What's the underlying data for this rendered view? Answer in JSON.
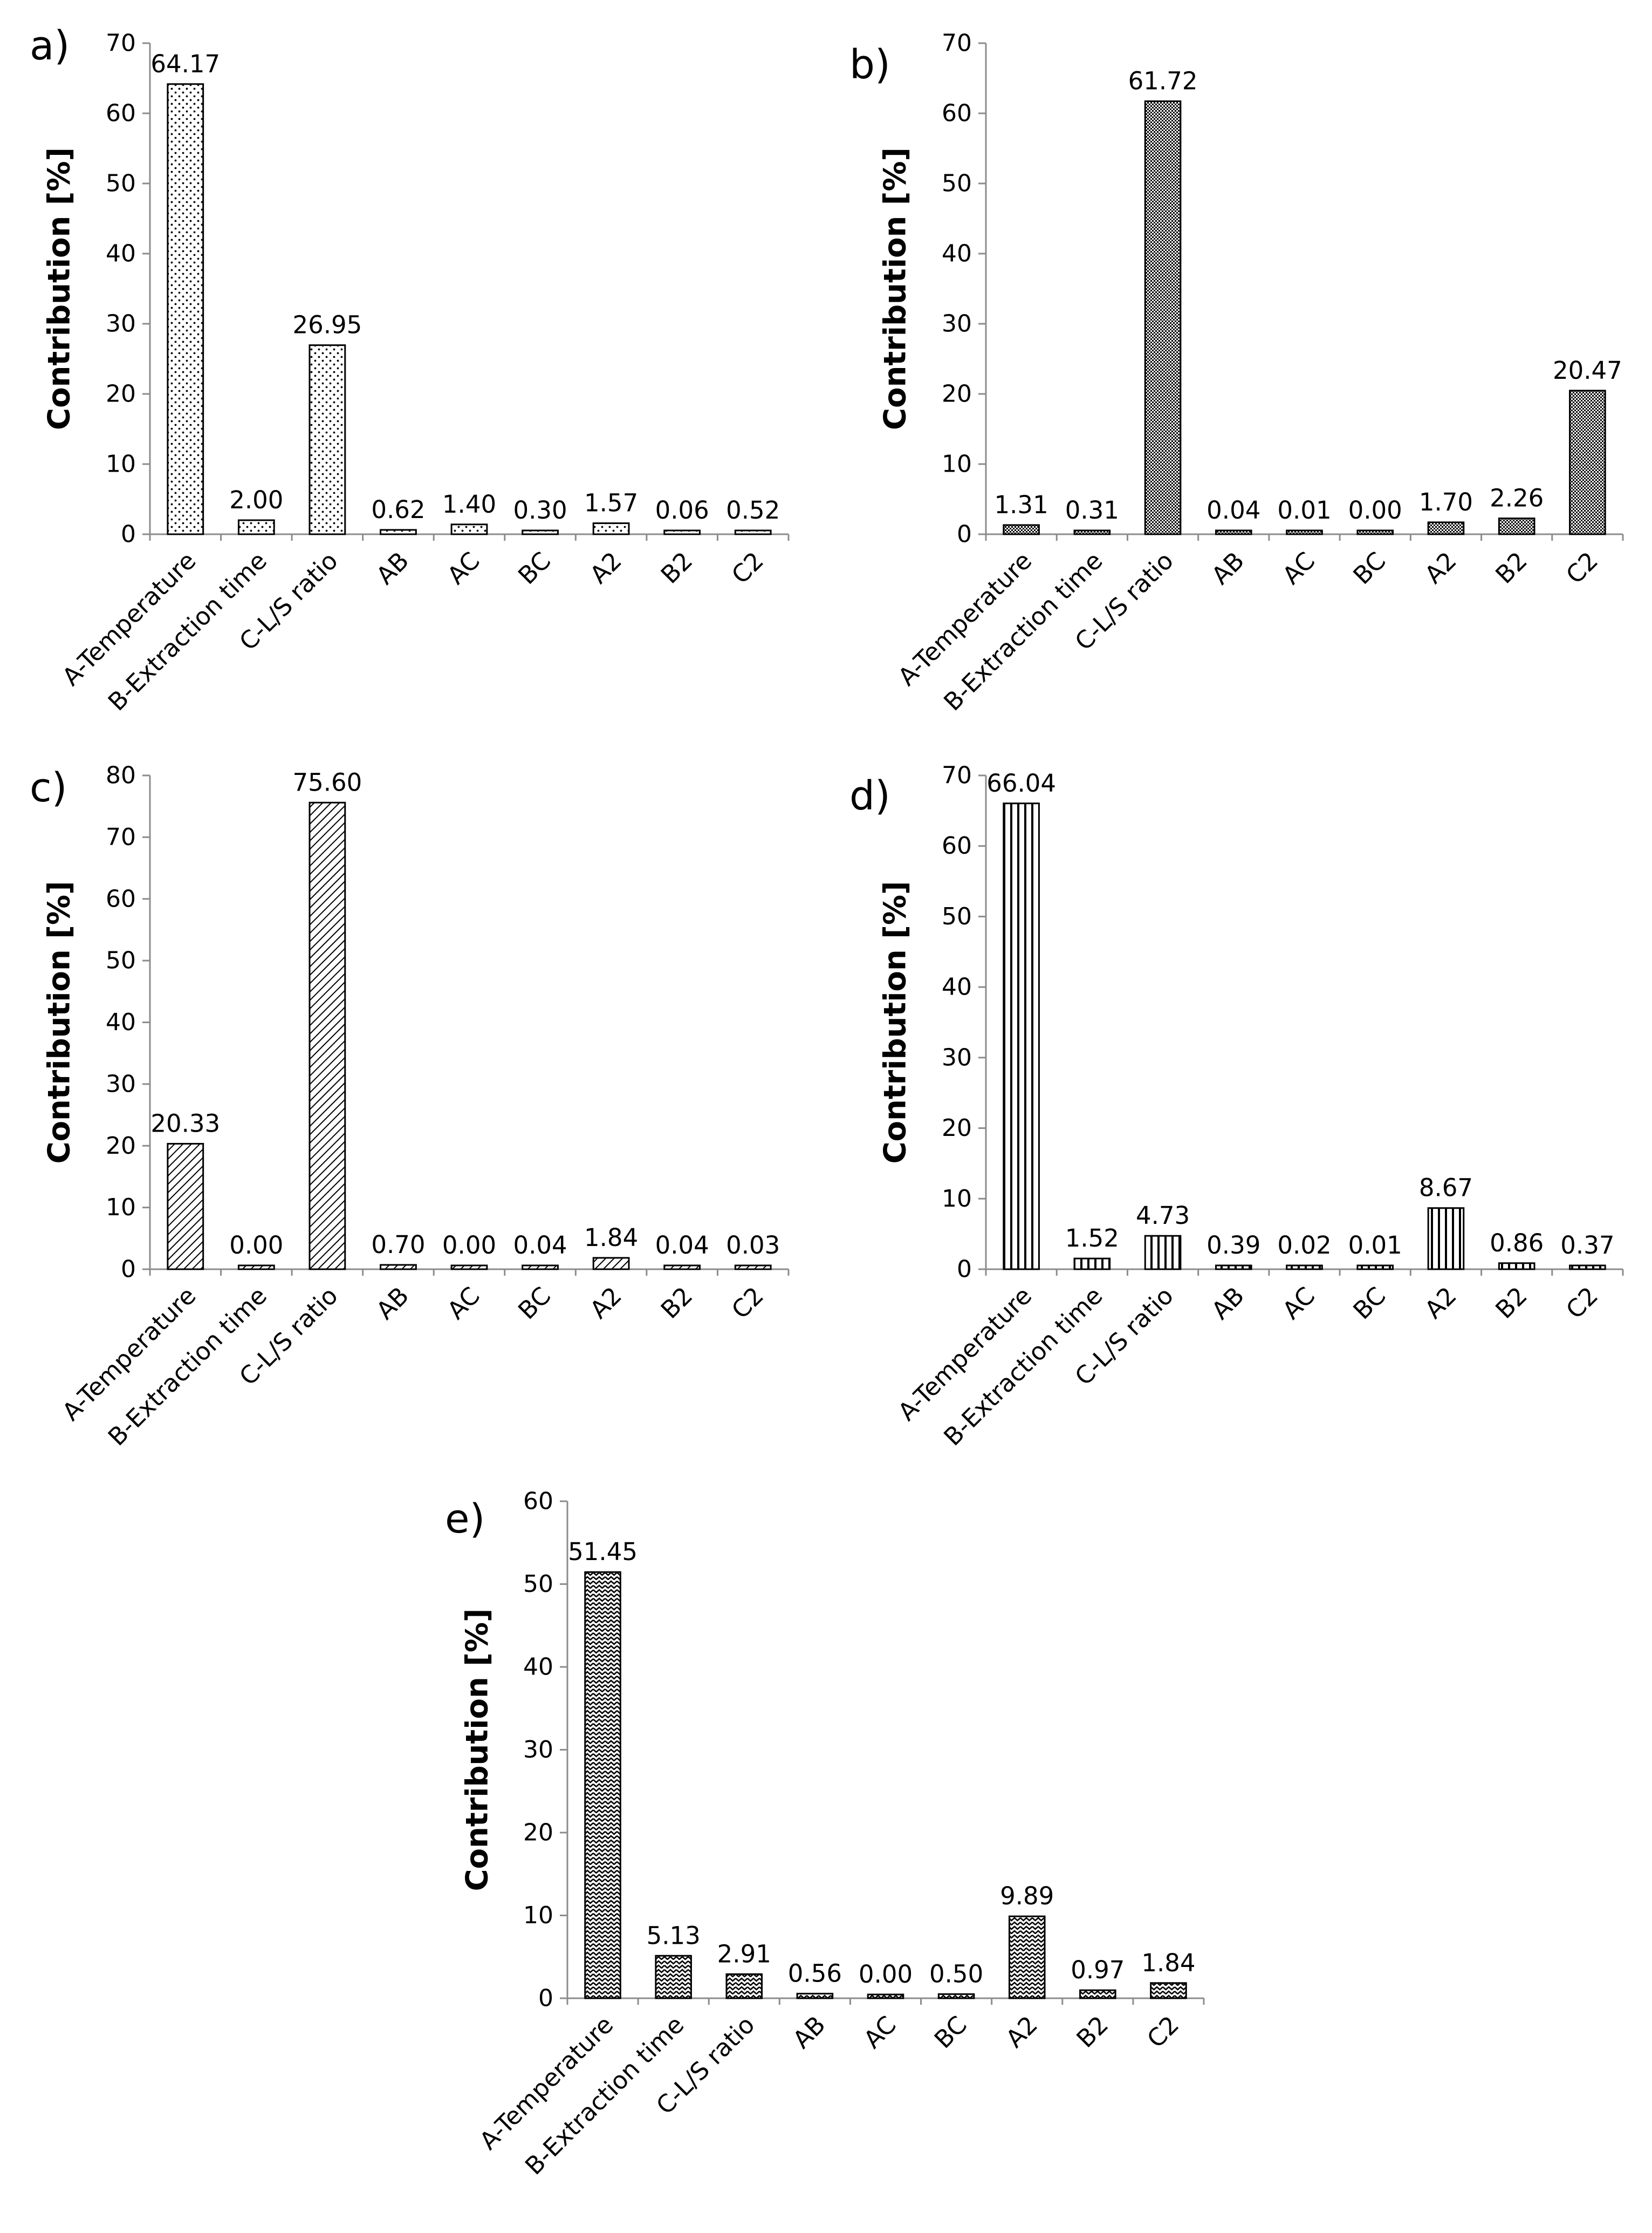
{
  "chart_data": [
    {
      "type": "bar",
      "panel": "a)",
      "ylabel": "Contribution [%]",
      "ylim": [
        0,
        70
      ],
      "yticks": [
        0,
        10,
        20,
        30,
        40,
        50,
        60,
        70
      ],
      "pattern": "dots",
      "categories": [
        "A-Temperature",
        "B-Extraction time",
        "C-L/S ratio",
        "AB",
        "AC",
        "BC",
        "A2",
        "B2",
        "C2"
      ],
      "values": [
        64.17,
        2.0,
        26.95,
        0.62,
        1.4,
        0.3,
        1.57,
        0.06,
        0.52
      ],
      "labels": [
        "64.17",
        "2.00",
        "26.95",
        "0.62",
        "1.40",
        "0.30",
        "1.57",
        "0.06",
        "0.52"
      ]
    },
    {
      "type": "bar",
      "panel": "b)",
      "ylabel": "Contribution [%]",
      "ylim": [
        0,
        70
      ],
      "yticks": [
        0,
        10,
        20,
        30,
        40,
        50,
        60,
        70
      ],
      "pattern": "crosshatch",
      "categories": [
        "A-Temperature",
        "B-Extraction time",
        "C-L/S ratio",
        "AB",
        "AC",
        "BC",
        "A2",
        "B2",
        "C2"
      ],
      "values": [
        1.31,
        0.31,
        61.72,
        0.04,
        0.01,
        0.0,
        1.7,
        2.26,
        20.47
      ],
      "labels": [
        "1.31",
        "0.31",
        "61.72",
        "0.04",
        "0.01",
        "0.00",
        "1.70",
        "2.26",
        "20.47"
      ]
    },
    {
      "type": "bar",
      "panel": "c)",
      "ylabel": "Contribution [%]",
      "ylim": [
        0,
        80
      ],
      "yticks": [
        0,
        10,
        20,
        30,
        40,
        50,
        60,
        70,
        80
      ],
      "pattern": "diagonal",
      "categories": [
        "A-Temperature",
        "B-Extraction time",
        "C-L/S ratio",
        "AB",
        "AC",
        "BC",
        "A2",
        "B2",
        "C2"
      ],
      "values": [
        20.33,
        0.0,
        75.6,
        0.7,
        0.0,
        0.04,
        1.84,
        0.04,
        0.03
      ],
      "labels": [
        "20.33",
        "0.00",
        "75.60",
        "0.70",
        "0.00",
        "0.04",
        "1.84",
        "0.04",
        "0.03"
      ]
    },
    {
      "type": "bar",
      "panel": "d)",
      "ylabel": "Contribution [%]",
      "ylim": [
        0,
        70
      ],
      "yticks": [
        0,
        10,
        20,
        30,
        40,
        50,
        60,
        70
      ],
      "pattern": "vertical",
      "categories": [
        "A-Temperature",
        "B-Extraction time",
        "C-L/S ratio",
        "AB",
        "AC",
        "BC",
        "A2",
        "B2",
        "C2"
      ],
      "values": [
        66.04,
        1.52,
        4.73,
        0.39,
        0.02,
        0.01,
        8.67,
        0.86,
        0.37
      ],
      "labels": [
        "66.04",
        "1.52",
        "4.73",
        "0.39",
        "0.02",
        "0.01",
        "8.67",
        "0.86",
        "0.37"
      ]
    },
    {
      "type": "bar",
      "panel": "e)",
      "ylabel": "Contribution [%]",
      "ylim": [
        0,
        60
      ],
      "yticks": [
        0,
        10,
        20,
        30,
        40,
        50,
        60
      ],
      "pattern": "zigzag",
      "categories": [
        "A-Temperature",
        "B-Extraction time",
        "C-L/S ratio",
        "AB",
        "AC",
        "BC",
        "A2",
        "B2",
        "C2"
      ],
      "values": [
        51.45,
        5.13,
        2.91,
        0.56,
        0.0,
        0.5,
        9.89,
        0.97,
        1.84
      ],
      "labels": [
        "51.45",
        "5.13",
        "2.91",
        "0.56",
        "0.00",
        "0.50",
        "9.89",
        "0.97",
        "1.84"
      ]
    }
  ]
}
